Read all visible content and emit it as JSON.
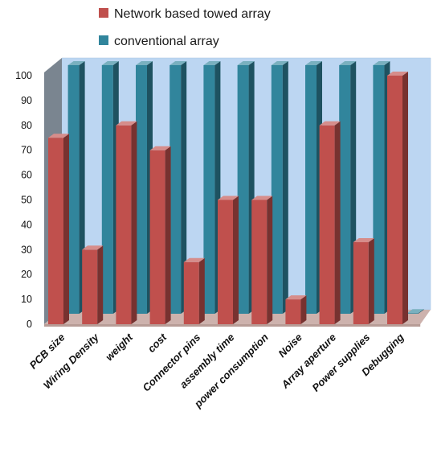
{
  "chart_data": {
    "type": "bar",
    "title": "",
    "xlabel": "",
    "ylabel": "",
    "ylim": [
      0,
      100
    ],
    "yticks": [
      0,
      10,
      20,
      30,
      40,
      50,
      60,
      70,
      80,
      90,
      100
    ],
    "categories": [
      "PCB size",
      "Wiring Density",
      "weight",
      "cost",
      "Connector pins",
      "assembly time",
      "power consumption",
      "Noise",
      "Array aperture",
      "Power supplies",
      "Debugging"
    ],
    "series": [
      {
        "name": "Network based towed array",
        "color": "#c0504d",
        "values": [
          75,
          30,
          80,
          70,
          25,
          50,
          50,
          10,
          80,
          33,
          100
        ]
      },
      {
        "name": "conventional array",
        "color": "#31859c",
        "values": [
          100,
          100,
          100,
          100,
          100,
          100,
          100,
          100,
          100,
          100,
          0
        ]
      }
    ],
    "legend_position": "top",
    "grid": false,
    "style": "3d-clustered-column",
    "colors": {
      "wall": "#bcd6f2",
      "side_wall": "#7a8590",
      "floor": "#cdb2ad"
    }
  }
}
